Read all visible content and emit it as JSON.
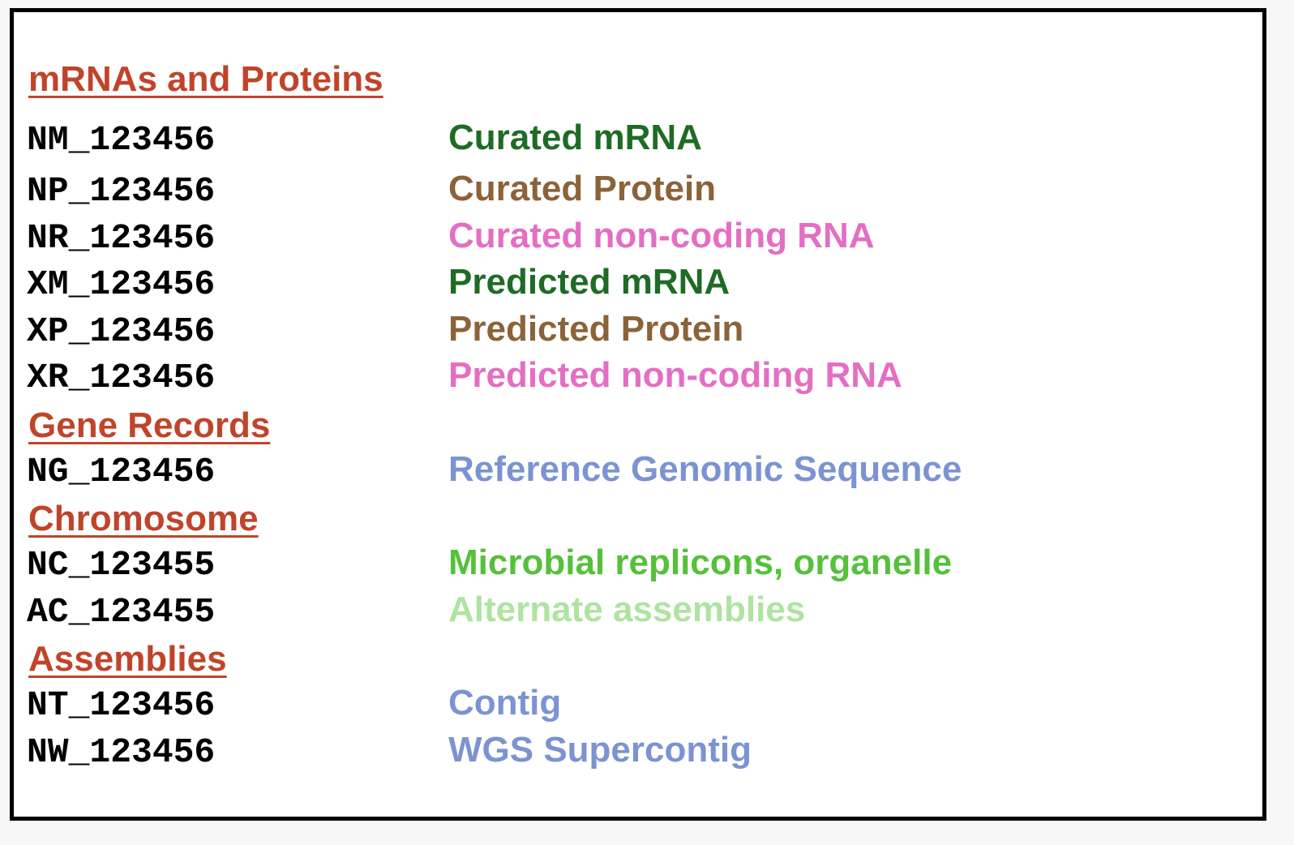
{
  "colors": {
    "heading": "#c0442a",
    "dark_green": "#1f6b25",
    "brown": "#8c6239",
    "pink": "#e46ec3",
    "blue": "#7b93d1",
    "green": "#55c13a",
    "light_green": "#aee4a0"
  },
  "sections": {
    "mrnas_proteins": {
      "title": "mRNAs and Proteins",
      "rows": [
        {
          "accession": "NM_123456",
          "description": "Curated mRNA",
          "color": "#1f6b25"
        },
        {
          "accession": "NP_123456",
          "description": "Curated Protein",
          "color": "#8c6239"
        },
        {
          "accession": "NR_123456",
          "description": "Curated non-coding RNA",
          "color": "#e46ec3"
        },
        {
          "accession": "XM_123456",
          "description": "Predicted mRNA",
          "color": "#1f6b25"
        },
        {
          "accession": "XP_123456",
          "description": "Predicted Protein",
          "color": "#8c6239"
        },
        {
          "accession": "XR_123456",
          "description": "Predicted non-coding RNA",
          "color": "#e46ec3"
        }
      ]
    },
    "gene_records": {
      "title": "Gene Records",
      "rows": [
        {
          "accession": "NG_123456",
          "description": "Reference Genomic Sequence",
          "color": "#7b93d1"
        }
      ]
    },
    "chromosome": {
      "title": "Chromosome",
      "rows": [
        {
          "accession": "NC_123455",
          "description": "Microbial replicons, organelle",
          "color": "#55c13a"
        },
        {
          "accession": "AC_123455",
          "description": "Alternate assemblies",
          "color": "#aee4a0"
        }
      ]
    },
    "assemblies": {
      "title": "Assemblies",
      "rows": [
        {
          "accession": "NT_123456",
          "description": "Contig",
          "color": "#7b93d1"
        },
        {
          "accession": "NW_123456",
          "description": "WGS Supercontig",
          "color": "#7b93d1"
        }
      ]
    }
  }
}
